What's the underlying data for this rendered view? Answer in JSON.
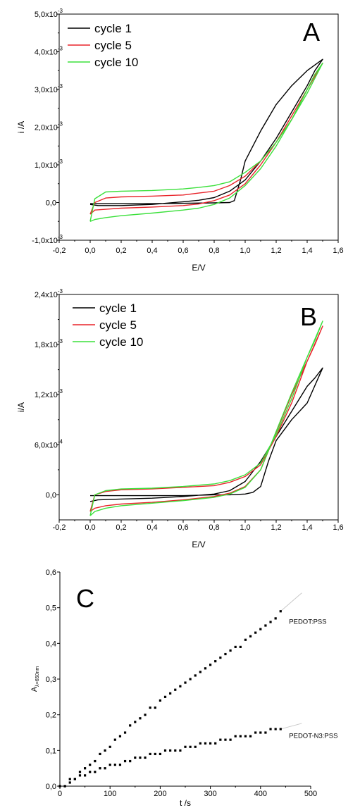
{
  "chart_data": [
    {
      "panel": "A",
      "type": "line",
      "letter": "A",
      "xlabel": "E/V",
      "ylabel": "i /A",
      "xlim": [
        -0.2,
        1.6
      ],
      "ylim": [
        -0.001,
        0.005
      ],
      "x_ticks": [
        "-0,2",
        "0,0",
        "0,2",
        "0,4",
        "0,6",
        "0,8",
        "1,0",
        "1,2",
        "1,4",
        "1,6"
      ],
      "y_ticks": [
        {
          "value": -0.001,
          "mant": "-1,0x10",
          "exp": "-3"
        },
        {
          "value": 0,
          "mant": "0,0",
          "exp": ""
        },
        {
          "value": 0.001,
          "mant": "1,0x10",
          "exp": "-3"
        },
        {
          "value": 0.002,
          "mant": "2,0x10",
          "exp": "-3"
        },
        {
          "value": 0.003,
          "mant": "3,0x10",
          "exp": "-3"
        },
        {
          "value": 0.004,
          "mant": "4,0x10",
          "exp": "-3"
        },
        {
          "value": 0.005,
          "mant": "5,0x10",
          "exp": "-3"
        }
      ],
      "legend_position": "top-left",
      "series": [
        {
          "name": "cycle 1",
          "color": "#000000",
          "x": [
            0.0,
            0.05,
            0.2,
            0.4,
            0.6,
            0.8,
            0.9,
            0.93,
            0.97,
            1.0,
            1.1,
            1.2,
            1.3,
            1.4,
            1.5,
            1.45,
            1.4,
            1.3,
            1.2,
            1.1,
            1.0,
            0.9,
            0.8,
            0.7,
            0.6,
            0.4,
            0.2,
            0.05,
            0.0
          ],
          "y": [
            -3e-05,
            -3e-05,
            -3e-05,
            -3e-05,
            -2e-05,
            -1e-05,
            0.0,
            5e-05,
            0.0006,
            0.0011,
            0.0019,
            0.0026,
            0.0031,
            0.0035,
            0.0038,
            0.0035,
            0.0031,
            0.0024,
            0.0017,
            0.0011,
            0.0006,
            0.0003,
            0.00013,
            6e-05,
            2e-05,
            -5e-05,
            -8e-05,
            -8e-05,
            -5e-05
          ]
        },
        {
          "name": "cycle 5",
          "color": "#e8242a",
          "x": [
            0.0,
            0.03,
            0.1,
            0.2,
            0.4,
            0.6,
            0.7,
            0.8,
            0.9,
            1.0,
            1.1,
            1.2,
            1.3,
            1.4,
            1.5,
            1.45,
            1.4,
            1.3,
            1.2,
            1.1,
            1.0,
            0.9,
            0.8,
            0.7,
            0.6,
            0.4,
            0.2,
            0.1,
            0.03,
            0.0
          ],
          "y": [
            -0.00031,
            -0.0002,
            -0.00018,
            -0.00015,
            -0.00012,
            -8e-05,
            -4e-05,
            5e-05,
            0.0002,
            0.0005,
            0.001,
            0.0016,
            0.0023,
            0.003,
            0.0037,
            0.0034,
            0.003,
            0.0022,
            0.0016,
            0.0011,
            0.0007,
            0.00045,
            0.0003,
            0.00025,
            0.0002,
            0.00017,
            0.00015,
            0.00012,
            0.0,
            -0.00031
          ]
        },
        {
          "name": "cycle 10",
          "color": "#3be03b",
          "x": [
            0.0,
            0.03,
            0.1,
            0.2,
            0.4,
            0.6,
            0.7,
            0.8,
            0.9,
            1.0,
            1.1,
            1.2,
            1.3,
            1.4,
            1.5,
            1.45,
            1.4,
            1.3,
            1.2,
            1.1,
            1.0,
            0.9,
            0.8,
            0.7,
            0.6,
            0.4,
            0.2,
            0.1,
            0.03,
            0.0
          ],
          "y": [
            -0.0005,
            -0.00045,
            -0.0004,
            -0.00035,
            -0.00028,
            -0.0002,
            -0.00015,
            -5e-05,
            0.00012,
            0.00045,
            0.0009,
            0.0015,
            0.0022,
            0.0029,
            0.0037,
            0.0034,
            0.003,
            0.0022,
            0.0016,
            0.0011,
            0.0008,
            0.00055,
            0.00045,
            0.0004,
            0.00036,
            0.00032,
            0.0003,
            0.00028,
            0.0001,
            -0.0005
          ]
        }
      ]
    },
    {
      "panel": "B",
      "type": "line",
      "letter": "B",
      "xlabel": "E/V",
      "ylabel": "i/A",
      "xlim": [
        -0.2,
        1.6
      ],
      "ylim": [
        -0.0003,
        0.0024
      ],
      "x_ticks": [
        "-0,2",
        "0,0",
        "0,2",
        "0,4",
        "0,6",
        "0,8",
        "1,0",
        "1,2",
        "1,4",
        "1,6"
      ],
      "y_ticks": [
        {
          "value": 0,
          "mant": "0,0",
          "exp": ""
        },
        {
          "value": 0.0006,
          "mant": "6,0x10",
          "exp": "-4"
        },
        {
          "value": 0.0012,
          "mant": "1,2x10",
          "exp": "-3"
        },
        {
          "value": 0.0018,
          "mant": "1,8x10",
          "exp": "-3"
        },
        {
          "value": 0.0024,
          "mant": "2,4x10",
          "exp": "-3"
        }
      ],
      "legend_position": "top-left",
      "series": [
        {
          "name": "cycle 1",
          "color": "#000000",
          "x": [
            0.0,
            0.2,
            0.4,
            0.6,
            0.8,
            0.9,
            1.0,
            1.05,
            1.1,
            1.15,
            1.2,
            1.3,
            1.4,
            1.5,
            1.45,
            1.4,
            1.3,
            1.2,
            1.1,
            1.0,
            0.9,
            0.8,
            0.6,
            0.4,
            0.2,
            0.05,
            0.0
          ],
          "y": [
            -1e-05,
            -1e-05,
            -1e-05,
            -1e-05,
            0.0,
            0.0,
            1e-05,
            3e-05,
            0.0001,
            0.0004,
            0.00065,
            0.0009,
            0.0011,
            0.00152,
            0.0014,
            0.0013,
            0.001,
            0.0007,
            0.0004,
            0.00016,
            5e-05,
            1e-05,
            -2e-05,
            -4e-05,
            -5e-05,
            -6e-05,
            -8e-05
          ]
        },
        {
          "name": "cycle 5",
          "color": "#e8242a",
          "x": [
            0.0,
            0.03,
            0.1,
            0.2,
            0.4,
            0.6,
            0.8,
            0.9,
            1.0,
            1.1,
            1.2,
            1.3,
            1.4,
            1.5,
            1.45,
            1.4,
            1.3,
            1.2,
            1.1,
            1.0,
            0.9,
            0.8,
            0.6,
            0.4,
            0.2,
            0.1,
            0.03,
            0.0
          ],
          "y": [
            -0.0002,
            -0.00016,
            -0.00013,
            -0.00011,
            -9e-05,
            -6e-05,
            -2e-05,
            2e-05,
            0.0001,
            0.0003,
            0.00075,
            0.0012,
            0.0016,
            0.00202,
            0.0018,
            0.0016,
            0.0011,
            0.0007,
            0.00036,
            0.00022,
            0.00015,
            0.00011,
            9e-05,
            7e-05,
            6e-05,
            4e-05,
            0.0,
            -0.0002
          ]
        },
        {
          "name": "cycle 10",
          "color": "#3be03b",
          "x": [
            0.0,
            0.03,
            0.1,
            0.2,
            0.4,
            0.6,
            0.8,
            0.9,
            1.0,
            1.1,
            1.2,
            1.3,
            1.4,
            1.5,
            1.45,
            1.4,
            1.3,
            1.2,
            1.1,
            1.0,
            0.9,
            0.8,
            0.6,
            0.4,
            0.2,
            0.1,
            0.03,
            0.0
          ],
          "y": [
            -0.00025,
            -0.0002,
            -0.00016,
            -0.00013,
            -0.0001,
            -7e-05,
            -3e-05,
            1e-05,
            9e-05,
            0.0003,
            0.00076,
            0.00122,
            0.00165,
            0.00208,
            0.00185,
            0.00165,
            0.00115,
            0.00072,
            0.00038,
            0.00024,
            0.00017,
            0.00013,
            0.0001,
            8e-05,
            7e-05,
            5e-05,
            0.0,
            -0.00025
          ]
        }
      ]
    },
    {
      "panel": "C",
      "type": "scatter",
      "letter": "C",
      "xlabel": "t /s",
      "ylabel_main": "A",
      "ylabel_sub": "λ=650nm",
      "xlim": [
        0,
        500
      ],
      "ylim": [
        0,
        0.6
      ],
      "x_ticks": [
        "0",
        "100",
        "200",
        "300",
        "400",
        "500"
      ],
      "y_ticks": [
        "0,0",
        "0,1",
        "0,2",
        "0,3",
        "0,4",
        "0,5",
        "0,6"
      ],
      "series": [
        {
          "name": "PEDOT:PSS",
          "color": "#000000",
          "x": [
            0,
            10,
            20,
            30,
            40,
            50,
            60,
            70,
            80,
            90,
            100,
            110,
            120,
            130,
            140,
            150,
            160,
            170,
            180,
            190,
            200,
            210,
            220,
            230,
            240,
            250,
            260,
            270,
            280,
            290,
            300,
            310,
            320,
            330,
            340,
            350,
            360,
            370,
            380,
            390,
            400,
            410,
            420,
            430,
            440
          ],
          "y": [
            0.0,
            0.0,
            0.02,
            0.02,
            0.04,
            0.05,
            0.06,
            0.07,
            0.09,
            0.1,
            0.11,
            0.13,
            0.14,
            0.15,
            0.17,
            0.18,
            0.19,
            0.2,
            0.22,
            0.22,
            0.24,
            0.25,
            0.26,
            0.27,
            0.28,
            0.29,
            0.3,
            0.31,
            0.32,
            0.33,
            0.34,
            0.35,
            0.36,
            0.37,
            0.38,
            0.39,
            0.39,
            0.41,
            0.42,
            0.43,
            0.44,
            0.45,
            0.46,
            0.47,
            0.49
          ]
        },
        {
          "name": "PEDOT-N3:PSS",
          "color": "#000000",
          "x": [
            0,
            10,
            20,
            30,
            40,
            50,
            60,
            70,
            80,
            90,
            100,
            110,
            120,
            130,
            140,
            150,
            160,
            170,
            180,
            190,
            200,
            210,
            220,
            230,
            240,
            250,
            260,
            270,
            280,
            290,
            300,
            310,
            320,
            330,
            340,
            350,
            360,
            370,
            380,
            390,
            400,
            410,
            420,
            430,
            440
          ],
          "y": [
            0.0,
            0.0,
            0.01,
            0.02,
            0.03,
            0.03,
            0.04,
            0.04,
            0.05,
            0.05,
            0.06,
            0.06,
            0.06,
            0.07,
            0.07,
            0.08,
            0.08,
            0.08,
            0.09,
            0.09,
            0.09,
            0.1,
            0.1,
            0.1,
            0.1,
            0.11,
            0.11,
            0.11,
            0.12,
            0.12,
            0.12,
            0.12,
            0.13,
            0.13,
            0.13,
            0.14,
            0.14,
            0.14,
            0.14,
            0.15,
            0.15,
            0.15,
            0.16,
            0.16,
            0.16
          ]
        }
      ]
    }
  ]
}
